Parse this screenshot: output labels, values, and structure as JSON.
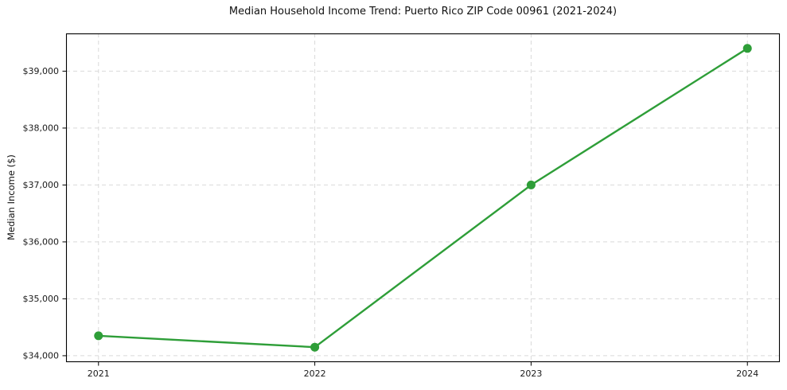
{
  "chart_data": {
    "type": "line",
    "title": "Median Household Income Trend: Puerto Rico ZIP Code 00961 (2021-2024)",
    "xlabel": "",
    "ylabel": "Median Income ($)",
    "x": [
      2021,
      2022,
      2023,
      2024
    ],
    "series": [
      {
        "name": "Median Household Income",
        "values": [
          34350,
          34150,
          37000,
          39400
        ]
      }
    ],
    "x_ticks": [
      2021,
      2022,
      2023,
      2024
    ],
    "x_tick_labels": [
      "2021",
      "2022",
      "2023",
      "2024"
    ],
    "y_ticks": [
      34000,
      35000,
      36000,
      37000,
      38000,
      39000
    ],
    "y_tick_labels": [
      "$34,000",
      "$35,000",
      "$36,000",
      "$37,000",
      "$38,000",
      "$39,000"
    ],
    "xlim": [
      2020.85,
      2024.15
    ],
    "ylim": [
      33887,
      39663
    ],
    "grid": true,
    "legend": "none",
    "colors": {
      "line": "#2e9e38",
      "marker": "#2e9e38",
      "grid": "#d9d9d9",
      "spine": "#000000",
      "tick_text": "#1a1a1a",
      "background": "#ffffff"
    }
  }
}
